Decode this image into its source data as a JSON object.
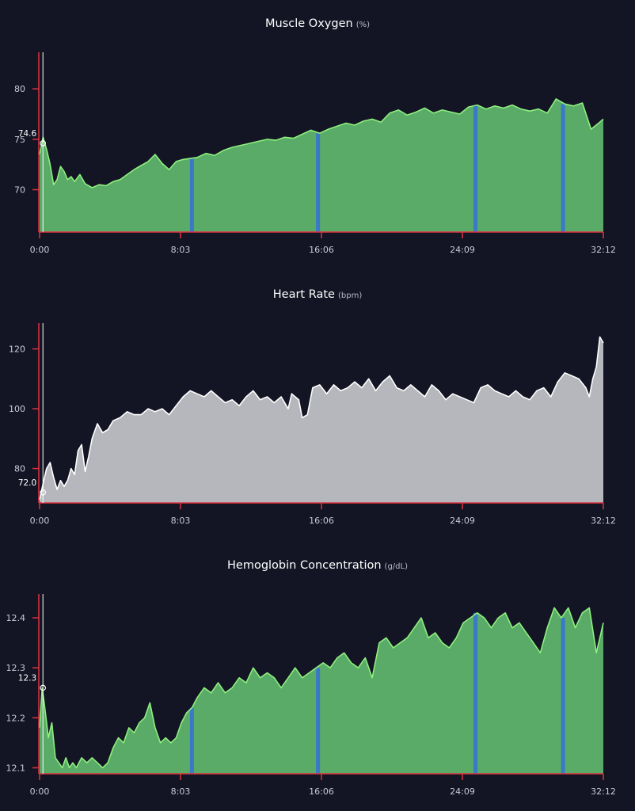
{
  "colors": {
    "background": "#131524",
    "axis": "#e0333e",
    "green_fill": "#5aaa68",
    "green_line": "#8ef07e",
    "grey_fill": "#b6b7bc",
    "grey_line": "#ffffff",
    "interval": "#3a78c8",
    "tick_text": "#c9cbd6",
    "cursor": "#ffffff"
  },
  "chart_data": [
    {
      "id": "smo2",
      "type": "area",
      "title": "Muscle Oxygen",
      "unit": "(%)",
      "xlabel": "",
      "ylabel": "",
      "x_tick_labels": [
        "0:00",
        "8:03",
        "16:06",
        "24:09",
        "32:12"
      ],
      "x_tick_values": [
        0,
        8.05,
        16.1,
        24.15,
        32.2
      ],
      "xlim": [
        0,
        32.2
      ],
      "y_ticks": [
        70,
        75,
        80
      ],
      "ylim": [
        65.8,
        83.0
      ],
      "cursor": {
        "x": 0.1,
        "label": "74.6",
        "value": 74.6
      },
      "interval_markers": [
        8.7,
        15.9,
        24.9,
        29.9
      ],
      "style": "green",
      "series": [
        {
          "x": [
            0,
            0.2,
            0.4,
            0.6,
            0.8,
            1.0,
            1.2,
            1.4,
            1.6,
            1.8,
            2.0,
            2.3,
            2.6,
            3.0,
            3.4,
            3.8,
            4.2,
            4.6,
            5.0,
            5.4,
            5.8,
            6.2,
            6.6,
            7.0,
            7.4,
            7.8,
            8.2,
            8.6,
            9.0,
            9.5,
            10.0,
            10.5,
            11.0,
            11.5,
            12.0,
            12.5,
            13.0,
            13.5,
            14.0,
            14.5,
            15.0,
            15.5,
            16.0,
            16.5,
            17.0,
            17.5,
            18.0,
            18.5,
            19.0,
            19.5,
            20.0,
            20.5,
            21.0,
            21.5,
            22.0,
            22.5,
            23.0,
            23.5,
            24.0,
            24.5,
            25.0,
            25.5,
            26.0,
            26.5,
            27.0,
            27.5,
            28.0,
            28.5,
            29.0,
            29.5,
            30.0,
            30.5,
            31.0,
            31.5,
            32.0,
            32.2
          ],
          "values": [
            73.5,
            75.2,
            74.0,
            72.5,
            70.5,
            71.0,
            72.3,
            71.8,
            71.0,
            71.3,
            70.8,
            71.5,
            70.6,
            70.2,
            70.5,
            70.4,
            70.8,
            71.0,
            71.5,
            72.0,
            72.4,
            72.8,
            73.5,
            72.6,
            72.0,
            72.8,
            73.0,
            73.1,
            73.2,
            73.6,
            73.4,
            73.9,
            74.2,
            74.4,
            74.6,
            74.8,
            75.0,
            74.9,
            75.2,
            75.1,
            75.5,
            75.9,
            75.6,
            76.0,
            76.3,
            76.6,
            76.4,
            76.8,
            77.0,
            76.7,
            77.6,
            77.9,
            77.4,
            77.7,
            78.1,
            77.6,
            77.9,
            77.7,
            77.5,
            78.2,
            78.4,
            78.0,
            78.3,
            78.1,
            78.4,
            78.0,
            77.8,
            78.0,
            77.6,
            79.0,
            78.5,
            78.3,
            78.6,
            76.0,
            76.7,
            77.0
          ]
        }
      ]
    },
    {
      "id": "hr",
      "type": "area",
      "title": "Heart Rate",
      "unit": "(bpm)",
      "xlabel": "",
      "ylabel": "",
      "x_tick_labels": [
        "0:00",
        "8:03",
        "16:06",
        "24:09",
        "32:12"
      ],
      "x_tick_values": [
        0,
        8.05,
        16.1,
        24.15,
        32.2
      ],
      "xlim": [
        0,
        32.2
      ],
      "y_ticks": [
        80,
        100,
        120
      ],
      "ylim": [
        68.5,
        126.5
      ],
      "cursor": {
        "x": 0.1,
        "label": "72.0",
        "value": 72.0
      },
      "interval_markers": [],
      "style": "grey",
      "series": [
        {
          "x": [
            0,
            0.2,
            0.4,
            0.6,
            0.8,
            1.0,
            1.2,
            1.4,
            1.6,
            1.8,
            2.0,
            2.2,
            2.4,
            2.6,
            2.8,
            3.0,
            3.3,
            3.6,
            3.9,
            4.2,
            4.6,
            5.0,
            5.4,
            5.8,
            6.2,
            6.6,
            7.0,
            7.4,
            7.8,
            8.2,
            8.6,
            9.0,
            9.4,
            9.8,
            10.2,
            10.6,
            11.0,
            11.4,
            11.8,
            12.2,
            12.6,
            13.0,
            13.4,
            13.8,
            14.2,
            14.4,
            14.6,
            14.8,
            15.0,
            15.3,
            15.6,
            16.0,
            16.4,
            16.8,
            17.2,
            17.6,
            18.0,
            18.4,
            18.8,
            19.2,
            19.6,
            20.0,
            20.4,
            20.8,
            21.2,
            21.6,
            22.0,
            22.4,
            22.8,
            23.2,
            23.6,
            24.0,
            24.4,
            24.8,
            25.2,
            25.6,
            26.0,
            26.4,
            26.8,
            27.2,
            27.6,
            28.0,
            28.4,
            28.8,
            29.2,
            29.6,
            30.0,
            30.4,
            30.8,
            31.2,
            31.4,
            31.6,
            31.8,
            32.0,
            32.2
          ],
          "values": [
            69.5,
            75,
            80,
            82,
            77,
            73,
            76,
            74,
            76,
            80,
            78,
            86,
            88,
            79,
            84,
            90,
            95,
            92,
            93,
            96,
            97,
            99,
            98,
            98,
            100,
            99,
            100,
            98,
            101,
            104,
            106,
            105,
            104,
            106,
            104,
            102,
            103,
            101,
            104,
            106,
            103,
            104,
            102,
            104,
            100,
            105,
            104,
            103,
            97,
            98,
            107,
            108,
            105,
            108,
            106,
            107,
            109,
            107,
            110,
            106,
            109,
            111,
            107,
            106,
            108,
            106,
            104,
            108,
            106,
            103,
            105,
            104,
            103,
            102,
            107,
            108,
            106,
            105,
            104,
            106,
            104,
            103,
            106,
            107,
            104,
            109,
            112,
            111,
            110,
            107,
            104,
            110,
            114,
            124,
            122
          ]
        }
      ]
    },
    {
      "id": "thb",
      "type": "area",
      "title": "Hemoglobin Concentration",
      "unit": "(g/dL)",
      "xlabel": "",
      "ylabel": "",
      "x_tick_labels": [
        "0:00",
        "8:03",
        "16:06",
        "24:09",
        "32:12"
      ],
      "x_tick_values": [
        0,
        8.05,
        16.1,
        24.15,
        32.2
      ],
      "xlim": [
        0,
        32.2
      ],
      "y_ticks": [
        12.1,
        12.2,
        12.3,
        12.4
      ],
      "ylim": [
        12.088,
        12.435
      ],
      "cursor": {
        "x": 0.1,
        "label": "12.3",
        "value": 12.26
      },
      "interval_markers": [
        8.7,
        15.9,
        24.9,
        29.9
      ],
      "style": "green",
      "series": [
        {
          "x": [
            0,
            0.15,
            0.3,
            0.5,
            0.7,
            0.9,
            1.1,
            1.3,
            1.5,
            1.7,
            1.9,
            2.1,
            2.4,
            2.7,
            3.0,
            3.3,
            3.6,
            3.9,
            4.2,
            4.5,
            4.8,
            5.1,
            5.4,
            5.7,
            6.0,
            6.3,
            6.6,
            6.9,
            7.2,
            7.5,
            7.8,
            8.1,
            8.4,
            8.7,
            9.0,
            9.4,
            9.8,
            10.2,
            10.6,
            11.0,
            11.4,
            11.8,
            12.2,
            12.6,
            13.0,
            13.4,
            13.8,
            14.2,
            14.6,
            15.0,
            15.4,
            15.8,
            16.2,
            16.6,
            17.0,
            17.4,
            17.8,
            18.2,
            18.6,
            19.0,
            19.4,
            19.8,
            20.2,
            20.6,
            21.0,
            21.4,
            21.8,
            22.2,
            22.6,
            23.0,
            23.4,
            23.8,
            24.2,
            24.6,
            25.0,
            25.4,
            25.8,
            26.2,
            26.6,
            27.0,
            27.4,
            27.8,
            28.2,
            28.6,
            29.0,
            29.4,
            29.8,
            30.2,
            30.6,
            31.0,
            31.4,
            31.8,
            32.2
          ],
          "values": [
            12.18,
            12.26,
            12.22,
            12.16,
            12.19,
            12.12,
            12.11,
            12.1,
            12.12,
            12.1,
            12.11,
            12.1,
            12.12,
            12.11,
            12.12,
            12.11,
            12.1,
            12.11,
            12.14,
            12.16,
            12.15,
            12.18,
            12.17,
            12.19,
            12.2,
            12.23,
            12.18,
            12.15,
            12.16,
            12.15,
            12.16,
            12.19,
            12.21,
            12.22,
            12.24,
            12.26,
            12.25,
            12.27,
            12.25,
            12.26,
            12.28,
            12.27,
            12.3,
            12.28,
            12.29,
            12.28,
            12.26,
            12.28,
            12.3,
            12.28,
            12.29,
            12.3,
            12.31,
            12.3,
            12.32,
            12.33,
            12.31,
            12.3,
            12.32,
            12.28,
            12.35,
            12.36,
            12.34,
            12.35,
            12.36,
            12.38,
            12.4,
            12.36,
            12.37,
            12.35,
            12.34,
            12.36,
            12.39,
            12.4,
            12.41,
            12.4,
            12.38,
            12.4,
            12.41,
            12.38,
            12.39,
            12.37,
            12.35,
            12.33,
            12.38,
            12.42,
            12.4,
            12.42,
            12.38,
            12.41,
            12.42,
            12.33,
            12.39
          ]
        }
      ]
    }
  ]
}
